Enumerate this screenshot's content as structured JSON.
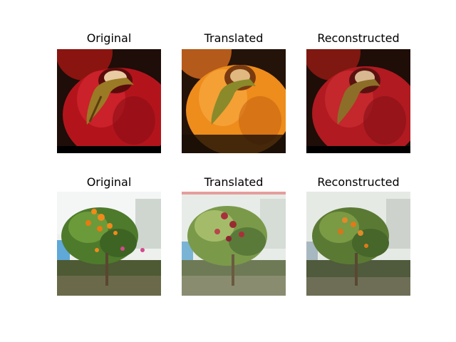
{
  "figure": {
    "rows": [
      {
        "subject": "apple",
        "panels": [
          {
            "title": "Original",
            "tone": "red"
          },
          {
            "title": "Translated",
            "tone": "orange"
          },
          {
            "title": "Reconstructed",
            "tone": "red"
          }
        ]
      },
      {
        "subject": "fruit tree in garden",
        "panels": [
          {
            "title": "Original",
            "tone": "orange-fruit"
          },
          {
            "title": "Translated",
            "tone": "red-fruit"
          },
          {
            "title": "Reconstructed",
            "tone": "orange-fruit"
          }
        ]
      }
    ]
  }
}
